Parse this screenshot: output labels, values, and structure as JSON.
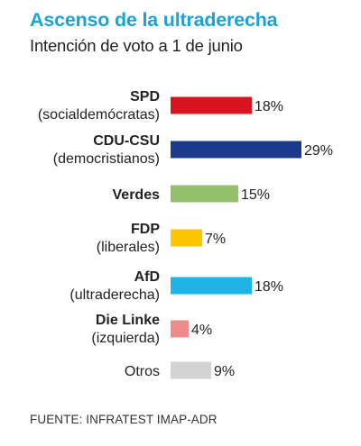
{
  "title": "Ascenso de la ultraderecha",
  "subtitle": "Intención de voto a 1 de junio",
  "source": "FUENTE: INFRATEST IMAP-ADR",
  "chart_data": {
    "type": "bar",
    "orientation": "horizontal",
    "title": "Ascenso de la ultraderecha",
    "subtitle": "Intención de voto a 1 de junio",
    "xlabel": "",
    "ylabel": "",
    "unit": "%",
    "grid": false,
    "legend": "none",
    "xlim": [
      0,
      29
    ],
    "categories": [
      {
        "name": "SPD",
        "sub": "(socialdemócratas)"
      },
      {
        "name": "CDU-CSU",
        "sub": "(democristianos)"
      },
      {
        "name": "Verdes",
        "sub": ""
      },
      {
        "name": "FDP",
        "sub": "(liberales)"
      },
      {
        "name": "AfD",
        "sub": "(ultraderecha)"
      },
      {
        "name": "Die Linke",
        "sub": "(izquierda)"
      },
      {
        "name": "Otros",
        "sub": ""
      }
    ],
    "values": [
      18,
      29,
      15,
      7,
      18,
      4,
      9
    ],
    "value_labels": [
      "18%",
      "29%",
      "15%",
      "7%",
      "18%",
      "4%",
      "9%"
    ],
    "colors": [
      "#d7141f",
      "#1c3a8c",
      "#94c06b",
      "#fcc600",
      "#1eb4e3",
      "#ee8c8a",
      "#d3d3d3"
    ],
    "name_bold": [
      true,
      true,
      true,
      true,
      true,
      true,
      false
    ]
  }
}
